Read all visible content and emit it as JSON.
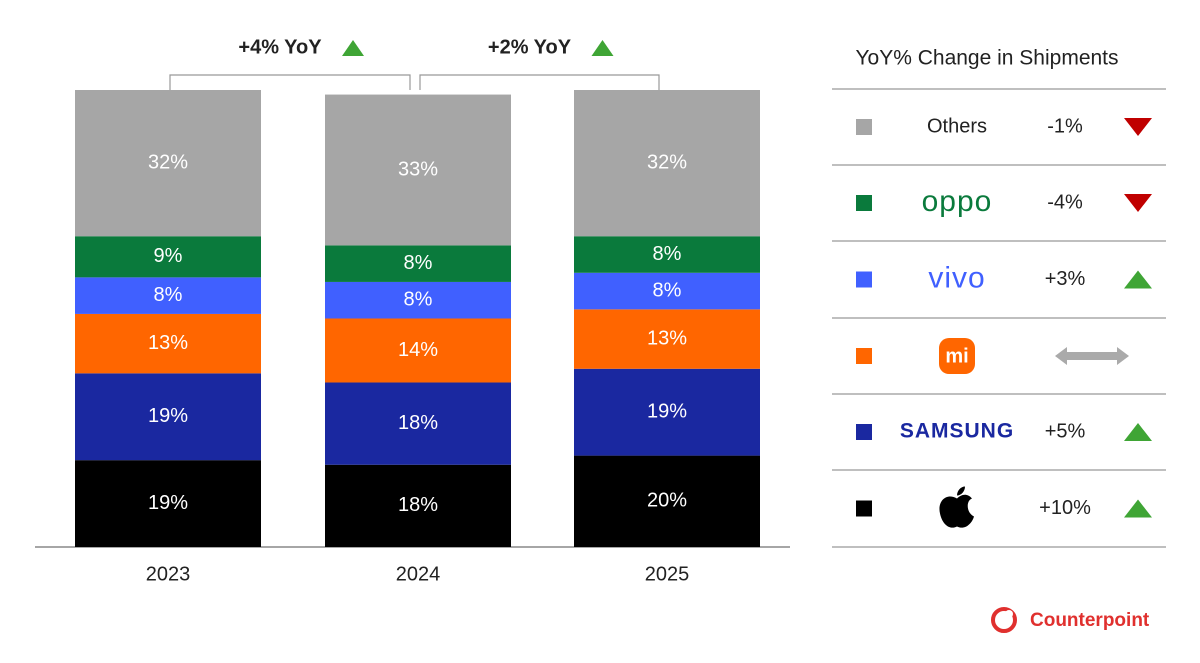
{
  "chart_data": {
    "type": "stacked_bar",
    "categories": [
      "2023",
      "2024",
      "2025"
    ],
    "annotations": [
      "+4% YoY",
      "+2% YoY"
    ],
    "legend_title": "YoY% Change in Shipments",
    "source": "Counterpoint",
    "series": [
      {
        "color": "#000000",
        "values": [
          19,
          18,
          20
        ],
        "value_labels": [
          "19%",
          "18%",
          "20%"
        ],
        "yoy": "+10%",
        "trend": "up",
        "logo": "apple"
      },
      {
        "name": "SAMSUNG",
        "color": "#1a28a0",
        "values": [
          19,
          18,
          19
        ],
        "value_labels": [
          "19%",
          "18%",
          "19%"
        ],
        "yoy": "+5%",
        "trend": "up",
        "logo": "samsung"
      },
      {
        "name": "mi",
        "color": "#ff6600",
        "values": [
          13,
          14,
          13
        ],
        "value_labels": [
          "13%",
          "14%",
          "13%"
        ],
        "trend": "flat",
        "logo": "mi"
      },
      {
        "name": "vivo",
        "color": "#4060ff",
        "values": [
          8,
          8,
          8
        ],
        "value_labels": [
          "8%",
          "8%",
          "8%"
        ],
        "yoy": "+3%",
        "trend": "up",
        "logo": "vivo"
      },
      {
        "name": "oppo",
        "color": "#0a7a3c",
        "values": [
          9,
          8,
          8
        ],
        "value_labels": [
          "9%",
          "8%",
          "8%"
        ],
        "yoy": "-4%",
        "trend": "down",
        "logo": "oppo"
      },
      {
        "name": "Others",
        "color": "#a6a6a6",
        "values": [
          32,
          33,
          32
        ],
        "value_labels": [
          "32%",
          "33%",
          "32%"
        ],
        "yoy": "-1%",
        "trend": "down",
        "logo": "text"
      }
    ]
  }
}
